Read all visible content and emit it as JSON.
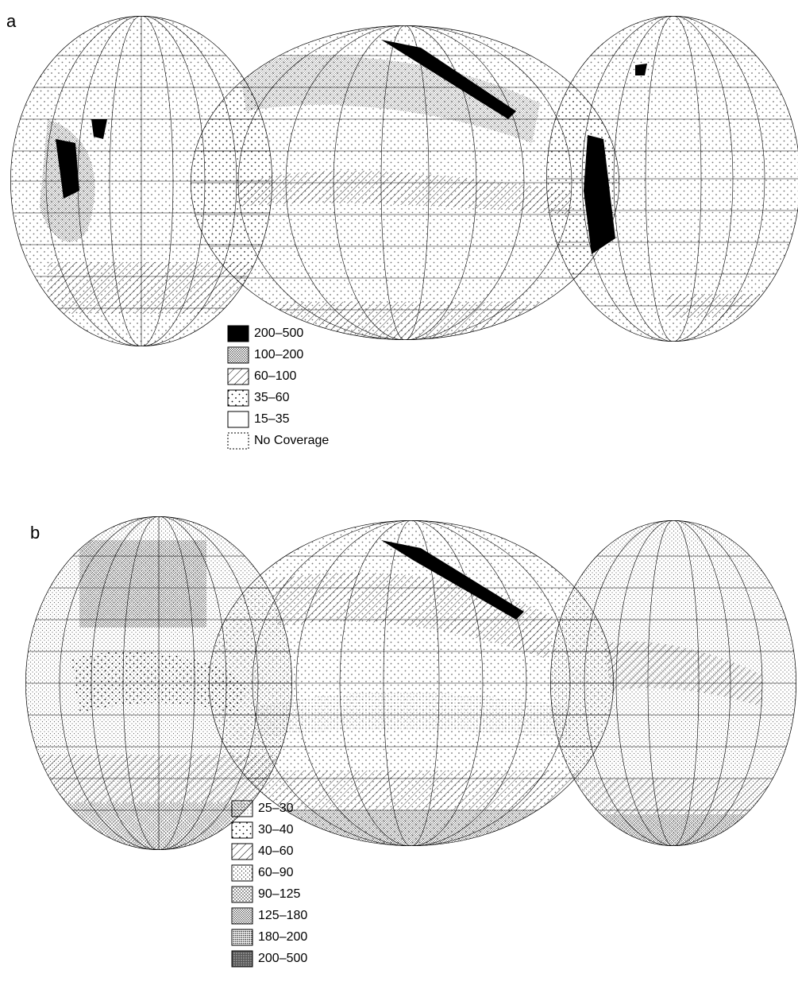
{
  "panel_a": {
    "letter": "a",
    "legend": [
      {
        "label": "200–500",
        "pattern": "solid"
      },
      {
        "label": "100–200",
        "pattern": "dense-dots"
      },
      {
        "label": "60–100",
        "pattern": "hatch"
      },
      {
        "label": "35–60",
        "pattern": "sparse-dots"
      },
      {
        "label": "15–35",
        "pattern": "blank"
      },
      {
        "label": "No Coverage",
        "pattern": "dashed"
      }
    ]
  },
  "panel_b": {
    "letter": "b",
    "legend": [
      {
        "label": "25–30",
        "pattern": "fine-dots"
      },
      {
        "label": "30–40",
        "pattern": "sparse-dots"
      },
      {
        "label": "40–60",
        "pattern": "hatch"
      },
      {
        "label": "60–90",
        "pattern": "light-dots"
      },
      {
        "label": "90–125",
        "pattern": "medium-dots"
      },
      {
        "label": "125–180",
        "pattern": "dense-dots"
      },
      {
        "label": "180–200",
        "pattern": "very-dense-dots"
      },
      {
        "label": "200–500",
        "pattern": "dark-speckle"
      }
    ]
  },
  "colors": {
    "ink": "#000000",
    "paper": "#ffffff"
  }
}
